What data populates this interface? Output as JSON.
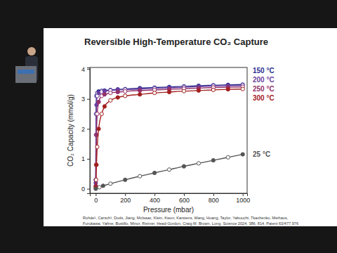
{
  "chart_data": {
    "type": "line",
    "title": "Reversible High-Temperature CO₂ Capture",
    "x_label": "Pressure (mbar)",
    "y_label": "CO₂ Capacity (mmol/g)",
    "xlim": [
      -40,
      1030
    ],
    "ylim": [
      -0.15,
      4.05
    ],
    "xticks": [
      0,
      200,
      400,
      600,
      800,
      1000
    ],
    "yticks": [
      0,
      1,
      2,
      3,
      4
    ],
    "grid": false,
    "marker": "circle",
    "line_style": "solid",
    "series": [
      {
        "name": "150 °C",
        "color": "#2b2f8f",
        "x": [
          0,
          2,
          5,
          10,
          20,
          40,
          60,
          100,
          150,
          200,
          300,
          400,
          500,
          600,
          700,
          800,
          900,
          1000
        ],
        "values": [
          0.3,
          2.5,
          3.1,
          3.2,
          3.25,
          3.27,
          3.28,
          3.3,
          3.32,
          3.33,
          3.36,
          3.38,
          3.4,
          3.42,
          3.44,
          3.46,
          3.47,
          3.48
        ]
      },
      {
        "name": "200 °C",
        "color": "#6b3fa0",
        "x": [
          0,
          2,
          5,
          10,
          20,
          40,
          60,
          100,
          150,
          200,
          300,
          400,
          500,
          600,
          700,
          800,
          900,
          1000
        ],
        "values": [
          0.2,
          1.8,
          2.8,
          3.1,
          3.2,
          3.24,
          3.26,
          3.28,
          3.3,
          3.31,
          3.33,
          3.35,
          3.37,
          3.39,
          3.41,
          3.43,
          3.44,
          3.45
        ]
      },
      {
        "name": "250 °C",
        "color": "#93306a",
        "x": [
          0,
          2,
          5,
          10,
          20,
          40,
          60,
          100,
          150,
          200,
          300,
          400,
          500,
          600,
          700,
          800,
          900,
          1000
        ],
        "values": [
          0.1,
          0.8,
          1.8,
          2.5,
          2.9,
          3.1,
          3.15,
          3.2,
          3.23,
          3.25,
          3.28,
          3.3,
          3.32,
          3.34,
          3.36,
          3.38,
          3.39,
          3.4
        ]
      },
      {
        "name": "300 °C",
        "color": "#a3201f",
        "x": [
          0,
          2,
          5,
          10,
          20,
          40,
          60,
          100,
          150,
          200,
          300,
          400,
          500,
          600,
          700,
          800,
          900,
          1000
        ],
        "values": [
          0.05,
          0.3,
          0.8,
          1.4,
          2.0,
          2.5,
          2.75,
          2.95,
          3.05,
          3.1,
          3.15,
          3.2,
          3.23,
          3.26,
          3.28,
          3.3,
          3.32,
          3.33
        ]
      },
      {
        "name": "25 °C",
        "color": "#555555",
        "x": [
          0,
          25,
          50,
          100,
          200,
          300,
          400,
          500,
          600,
          700,
          800,
          900,
          1000
        ],
        "values": [
          0,
          0.05,
          0.1,
          0.17,
          0.3,
          0.42,
          0.53,
          0.64,
          0.75,
          0.85,
          0.95,
          1.05,
          1.15
        ]
      }
    ],
    "citation": [
      "Rohde¹, Carsch¹, Dods, Jiang, McIsaac, Klein, Kwon, Karstens, Wang, Huang, Taylor, Yabuuchi, Tkachenko, Meihaus,",
      "Furukawa, Yahne, Bustillo, Minor, Reimer, Head-Gordon, Craig M. Brown, Long. Science 2024, 386, 814. Patent 63/477,976"
    ]
  }
}
